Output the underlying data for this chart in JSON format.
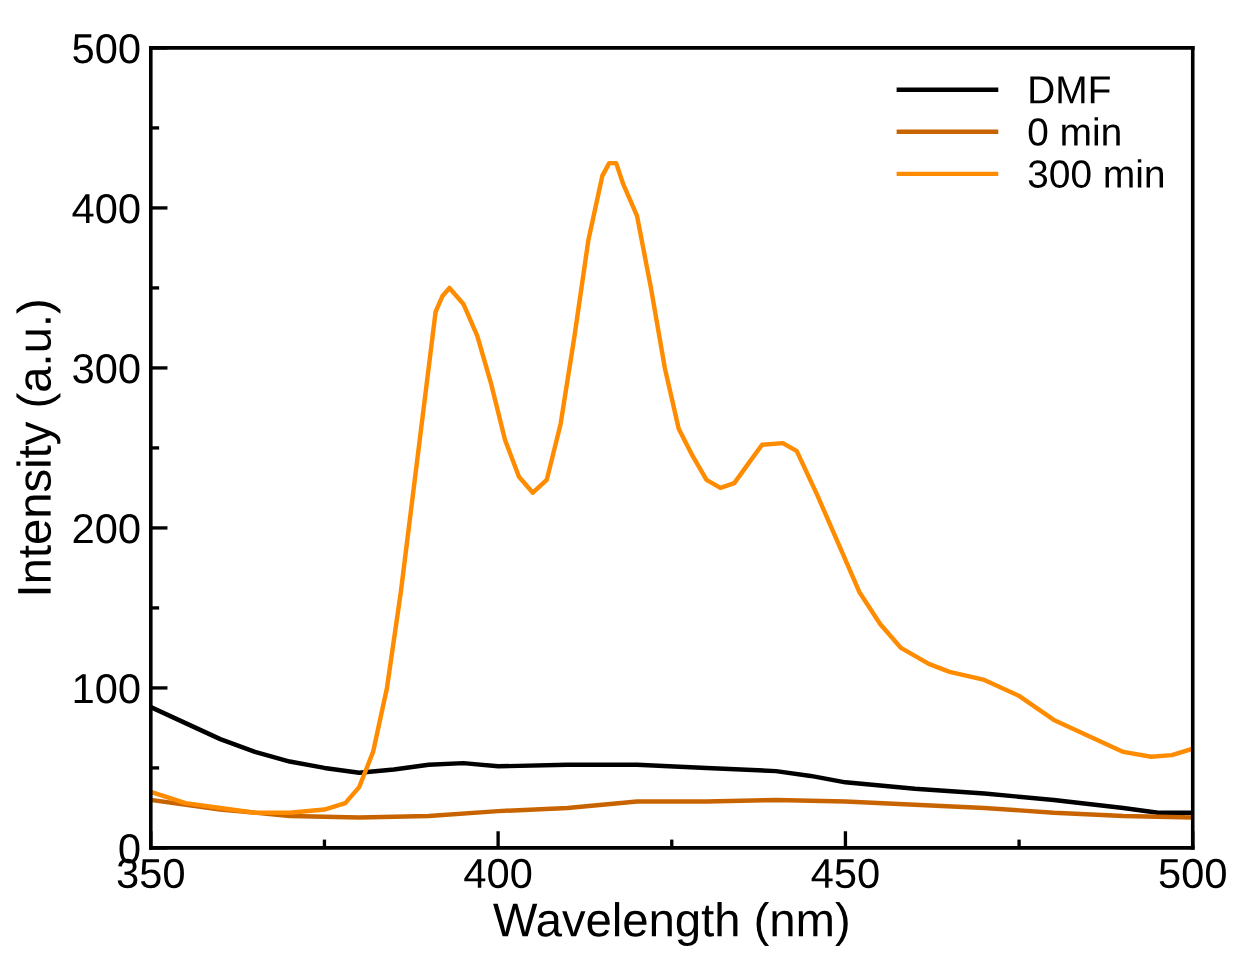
{
  "chart_data": {
    "type": "line",
    "xlabel": "Wavelength (nm)",
    "ylabel": "Intensity (a.u.)",
    "xlim": [
      350,
      500
    ],
    "ylim": [
      0,
      500
    ],
    "xticks": [
      350,
      400,
      450,
      500
    ],
    "yticks": [
      0,
      100,
      200,
      300,
      400,
      500
    ],
    "legend": "top right",
    "grid": false,
    "marker": "none",
    "line_style": "solid",
    "series": [
      {
        "name": "DMF",
        "color": "#000000",
        "x": [
          350,
          355,
          360,
          365,
          370,
          375,
          380,
          385,
          390,
          395,
          400,
          410,
          420,
          430,
          440,
          445,
          450,
          460,
          470,
          480,
          490,
          495,
          500
        ],
        "values": [
          88,
          78,
          68,
          60,
          54,
          50,
          47,
          49,
          52,
          53,
          51,
          52,
          52,
          50,
          48,
          45,
          41,
          37,
          34,
          30,
          25,
          22,
          22
        ]
      },
      {
        "name": "0 min",
        "color": "#c86400",
        "x": [
          350,
          360,
          370,
          380,
          390,
          400,
          410,
          420,
          430,
          440,
          450,
          460,
          470,
          480,
          490,
          500
        ],
        "values": [
          30,
          24,
          20,
          19,
          20,
          23,
          25,
          29,
          29,
          30,
          29,
          27,
          25,
          22,
          20,
          19
        ]
      },
      {
        "name": "300 min",
        "color": "#ff8c00",
        "x": [
          350,
          355,
          360,
          365,
          370,
          375,
          378,
          380,
          382,
          384,
          386,
          388,
          390,
          391,
          392,
          393,
          395,
          397,
          399,
          401,
          403,
          405,
          407,
          409,
          411,
          413,
          415,
          416,
          417,
          418,
          420,
          422,
          424,
          426,
          428,
          430,
          432,
          434,
          436,
          438,
          441,
          443,
          446,
          449,
          452,
          455,
          458,
          462,
          465,
          470,
          475,
          480,
          485,
          490,
          494,
          497,
          500
        ],
        "values": [
          35,
          28,
          25,
          22,
          22,
          24,
          28,
          38,
          60,
          100,
          160,
          230,
          300,
          335,
          345,
          350,
          340,
          320,
          290,
          255,
          232,
          222,
          230,
          265,
          320,
          380,
          420,
          428,
          428,
          415,
          395,
          350,
          300,
          262,
          245,
          230,
          225,
          228,
          240,
          252,
          253,
          248,
          220,
          190,
          160,
          140,
          125,
          115,
          110,
          105,
          95,
          80,
          70,
          60,
          57,
          58,
          62
        ]
      }
    ]
  }
}
